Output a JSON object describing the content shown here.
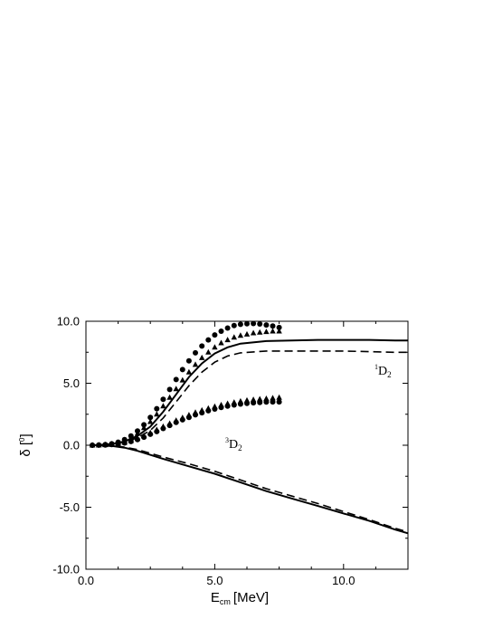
{
  "chart_data": {
    "type": "line",
    "title": "",
    "xlabel": "E",
    "xlabel_sub": "cm",
    "xlabel_unit": "[MeV]",
    "ylabel": "δ [",
    "ylabel_sup": "0",
    "ylabel_close": "]",
    "xlim": [
      0.0,
      12.5
    ],
    "ylim": [
      -10.0,
      10.0
    ],
    "x_ticks": [
      {
        "value": 0.0,
        "label": "0.0"
      },
      {
        "value": 5.0,
        "label": "5.0"
      },
      {
        "value": 10.0,
        "label": "10.0"
      }
    ],
    "y_ticks": [
      {
        "value": 10.0,
        "label": "10.0"
      },
      {
        "value": 5.0,
        "label": "5.0"
      },
      {
        "value": 0.0,
        "label": "0.0"
      },
      {
        "value": -5.0,
        "label": "-5.0"
      },
      {
        "value": -10.0,
        "label": "-10.0"
      }
    ],
    "grid": false,
    "annotations": [
      {
        "sup": "1",
        "text": "D",
        "sub": "2",
        "x": 11.4,
        "y": 6.0
      },
      {
        "sup": "3",
        "text": "D",
        "sub": "2",
        "x": 5.6,
        "y": -0.2
      }
    ],
    "series": [
      {
        "style": "solid",
        "x": [
          0.2,
          0.5,
          1.0,
          1.5,
          2.0,
          2.5,
          3.0,
          3.5,
          4.0,
          4.5,
          5.0,
          5.5,
          6.0,
          7.0,
          8.0,
          9.0,
          10.0,
          11.0,
          12.0,
          12.5
        ],
        "y": [
          0.0,
          0.02,
          0.1,
          0.3,
          0.75,
          1.5,
          2.7,
          4.1,
          5.5,
          6.6,
          7.4,
          7.9,
          8.2,
          8.4,
          8.45,
          8.5,
          8.5,
          8.5,
          8.45,
          8.45
        ]
      },
      {
        "style": "dashed",
        "x": [
          0.2,
          0.5,
          1.0,
          1.5,
          2.0,
          2.5,
          3.0,
          3.5,
          4.0,
          4.5,
          5.0,
          5.5,
          6.0,
          7.0,
          8.0,
          9.0,
          10.0,
          11.0,
          12.0,
          12.5
        ],
        "y": [
          0.0,
          0.02,
          0.08,
          0.25,
          0.6,
          1.2,
          2.2,
          3.5,
          4.8,
          5.9,
          6.7,
          7.2,
          7.45,
          7.6,
          7.6,
          7.6,
          7.6,
          7.55,
          7.5,
          7.5
        ]
      },
      {
        "style": "solid",
        "x": [
          0.2,
          0.5,
          1.0,
          1.5,
          2.0,
          3.0,
          4.0,
          5.0,
          6.0,
          7.0,
          8.0,
          9.0,
          10.0,
          11.0,
          12.0,
          12.5
        ],
        "y": [
          0.0,
          -0.01,
          -0.05,
          -0.2,
          -0.45,
          -1.1,
          -1.7,
          -2.3,
          -3.0,
          -3.7,
          -4.3,
          -4.9,
          -5.5,
          -6.1,
          -6.8,
          -7.1
        ]
      },
      {
        "style": "dashed",
        "x": [
          0.2,
          0.5,
          1.0,
          1.5,
          2.0,
          3.0,
          4.0,
          5.0,
          6.0,
          7.0,
          8.0,
          9.0,
          10.0,
          11.0,
          12.0,
          12.5
        ],
        "y": [
          0.0,
          -0.01,
          -0.04,
          -0.15,
          -0.35,
          -0.95,
          -1.5,
          -2.1,
          -2.8,
          -3.5,
          -4.1,
          -4.7,
          -5.35,
          -6.0,
          -6.7,
          -7.0
        ]
      },
      {
        "style": "circle",
        "x": [
          0.25,
          0.5,
          0.75,
          1.0,
          1.25,
          1.5,
          1.75,
          2.0,
          2.25,
          2.5,
          2.75,
          3.0,
          3.25,
          3.5,
          3.75,
          4.0,
          4.25,
          4.5,
          4.75,
          5.0,
          5.25,
          5.5,
          5.75,
          6.0,
          6.25,
          6.5,
          6.75,
          7.0,
          7.25,
          7.5
        ],
        "y": [
          0.0,
          0.02,
          0.05,
          0.12,
          0.25,
          0.45,
          0.75,
          1.15,
          1.65,
          2.25,
          2.95,
          3.7,
          4.5,
          5.3,
          6.1,
          6.8,
          7.45,
          8.0,
          8.5,
          8.9,
          9.2,
          9.45,
          9.65,
          9.75,
          9.8,
          9.82,
          9.78,
          9.7,
          9.62,
          9.5
        ]
      },
      {
        "style": "triangle",
        "x": [
          0.25,
          0.5,
          0.75,
          1.0,
          1.25,
          1.5,
          1.75,
          2.0,
          2.25,
          2.5,
          2.75,
          3.0,
          3.25,
          3.5,
          3.75,
          4.0,
          4.25,
          4.5,
          4.75,
          5.0,
          5.25,
          5.5,
          5.75,
          6.0,
          6.25,
          6.5,
          6.75,
          7.0,
          7.25,
          7.5
        ],
        "y": [
          0.0,
          0.02,
          0.04,
          0.1,
          0.2,
          0.35,
          0.6,
          0.95,
          1.4,
          1.9,
          2.5,
          3.15,
          3.85,
          4.55,
          5.25,
          5.9,
          6.5,
          7.05,
          7.5,
          7.9,
          8.25,
          8.5,
          8.7,
          8.85,
          8.95,
          9.05,
          9.1,
          9.15,
          9.2,
          9.2
        ]
      },
      {
        "style": "circle",
        "x": [
          0.25,
          0.5,
          0.75,
          1.0,
          1.25,
          1.5,
          1.75,
          2.0,
          2.25,
          2.5,
          2.75,
          3.0,
          3.25,
          3.5,
          3.75,
          4.0,
          4.25,
          4.5,
          4.75,
          5.0,
          5.25,
          5.5,
          5.75,
          6.0,
          6.25,
          6.5,
          6.75,
          7.0,
          7.25,
          7.5
        ],
        "y": [
          0.0,
          0.01,
          0.02,
          0.05,
          0.1,
          0.18,
          0.3,
          0.45,
          0.65,
          0.88,
          1.1,
          1.35,
          1.6,
          1.85,
          2.05,
          2.25,
          2.45,
          2.62,
          2.78,
          2.92,
          3.05,
          3.15,
          3.25,
          3.32,
          3.38,
          3.42,
          3.45,
          3.48,
          3.5,
          3.5
        ]
      },
      {
        "style": "triangle",
        "x": [
          0.25,
          0.5,
          0.75,
          1.0,
          1.25,
          1.5,
          1.75,
          2.0,
          2.25,
          2.5,
          2.75,
          3.0,
          3.25,
          3.5,
          3.75,
          4.0,
          4.25,
          4.5,
          4.75,
          5.0,
          5.25,
          5.5,
          5.75,
          6.0,
          6.25,
          6.5,
          6.75,
          7.0,
          7.25,
          7.5
        ],
        "y": [
          0.0,
          0.01,
          0.03,
          0.06,
          0.12,
          0.22,
          0.36,
          0.54,
          0.76,
          1.0,
          1.25,
          1.5,
          1.75,
          2.0,
          2.22,
          2.44,
          2.64,
          2.82,
          2.98,
          3.12,
          3.25,
          3.36,
          3.46,
          3.55,
          3.62,
          3.68,
          3.72,
          3.76,
          3.8,
          3.85
        ]
      }
    ]
  }
}
